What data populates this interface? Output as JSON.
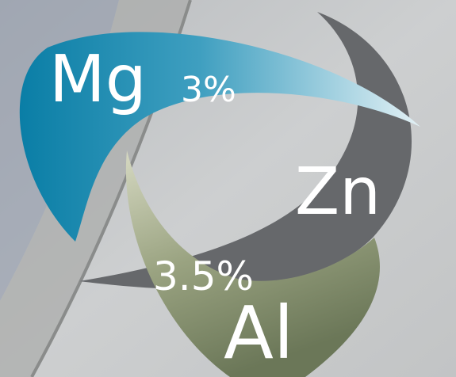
{
  "elements": [
    {
      "label": "Mg",
      "percent": "3%"
    },
    {
      "label": "Zn"
    },
    {
      "label": "Al",
      "percent": "3.5%"
    }
  ]
}
